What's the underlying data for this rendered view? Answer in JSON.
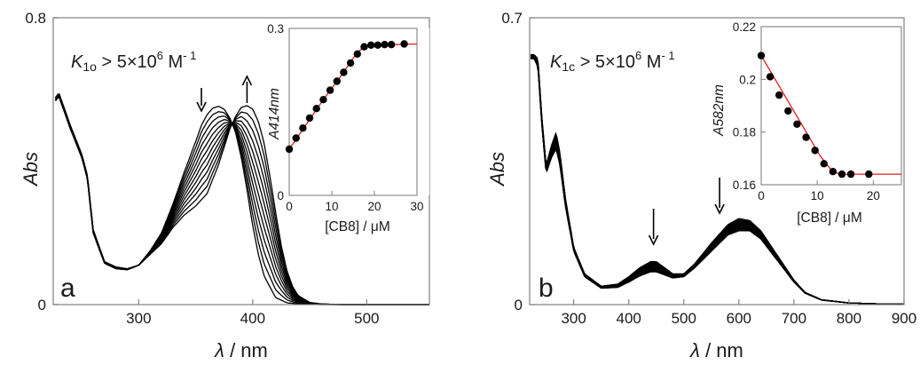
{
  "figure": {
    "panels": [
      {
        "letter": "a",
        "k_symbol": "K",
        "k_sub": "1o",
        "k_rest": " > 5×10",
        "k_exp": "6",
        "k_unit": " M",
        "k_unit_exp": "- 1",
        "ylabel": "Abs",
        "xlabel_sym": "λ",
        "xlabel_unit": " / nm"
      },
      {
        "letter": "b",
        "k_symbol": "K",
        "k_sub": "1c",
        "k_rest": " > 5×10",
        "k_exp": "6",
        "k_unit": " M",
        "k_unit_exp": "- 1",
        "ylabel": "Abs",
        "xlabel_sym": "λ",
        "xlabel_unit": " / nm"
      }
    ],
    "colors": {
      "curves": "#000000",
      "fit": "#e31a1c",
      "axes": "#808080"
    }
  },
  "chart_data": [
    {
      "type": "line",
      "panel": "a",
      "description_series": "UV-vis titration spectra",
      "xlabel": "λ / nm",
      "ylabel": "Abs",
      "xlim": [
        225,
        555
      ],
      "ylim": [
        0,
        0.8
      ],
      "xticks": [
        300,
        400,
        500
      ],
      "yticks": [
        0,
        0.8
      ],
      "n_curves": 12,
      "first_curve": {
        "x": [
          225,
          230,
          240,
          250,
          255,
          260,
          270,
          280,
          290,
          300,
          310,
          320,
          330,
          340,
          350,
          355,
          360,
          365,
          370,
          375,
          380,
          385,
          390,
          395,
          400,
          405,
          410,
          420,
          430,
          440,
          450,
          460,
          480,
          500,
          520,
          555
        ],
        "y": [
          0.56,
          0.58,
          0.49,
          0.41,
          0.35,
          0.2,
          0.115,
          0.1,
          0.097,
          0.11,
          0.15,
          0.2,
          0.28,
          0.37,
          0.455,
          0.5,
          0.53,
          0.548,
          0.553,
          0.545,
          0.52,
          0.48,
          0.41,
          0.32,
          0.22,
          0.14,
          0.08,
          0.02,
          0.005,
          0.002,
          0.001,
          0,
          0,
          0,
          0,
          0
        ]
      },
      "last_curve": {
        "x": [
          225,
          230,
          240,
          250,
          255,
          260,
          270,
          280,
          290,
          300,
          310,
          320,
          330,
          340,
          350,
          360,
          370,
          375,
          380,
          385,
          390,
          395,
          400,
          405,
          410,
          415,
          420,
          425,
          430,
          435,
          440,
          450,
          460,
          480,
          500,
          520,
          555
        ],
        "y": [
          0.57,
          0.59,
          0.5,
          0.42,
          0.36,
          0.21,
          0.12,
          0.105,
          0.1,
          0.11,
          0.14,
          0.17,
          0.215,
          0.25,
          0.275,
          0.31,
          0.39,
          0.44,
          0.49,
          0.525,
          0.55,
          0.555,
          0.545,
          0.51,
          0.45,
          0.36,
          0.26,
          0.165,
          0.095,
          0.05,
          0.025,
          0.006,
          0.002,
          0,
          0,
          0,
          0
        ]
      },
      "annotations": [
        "arrow down at 355 nm",
        "arrow up at 395 nm"
      ],
      "inset": {
        "type": "scatter",
        "xlabel": "[CB8] / μM",
        "ylabel": "A414nm",
        "xlim": [
          0,
          30
        ],
        "ylim": [
          0,
          0.3
        ],
        "xticks": [
          0,
          10,
          20,
          30
        ],
        "yticks": [
          0,
          0.3
        ],
        "points": {
          "x": [
            0,
            1.6,
            3.2,
            4.8,
            6.4,
            8.0,
            9.6,
            11.2,
            12.8,
            14.4,
            16.0,
            17.6,
            19.2,
            20.8,
            22.4,
            24.0,
            27.0
          ],
          "y": [
            0.083,
            0.103,
            0.121,
            0.139,
            0.156,
            0.172,
            0.189,
            0.205,
            0.221,
            0.238,
            0.254,
            0.267,
            0.27,
            0.27,
            0.271,
            0.271,
            0.272
          ]
        },
        "fit": {
          "x": [
            0,
            8,
            12,
            15,
            16.5,
            18,
            20,
            30
          ],
          "y": [
            0.083,
            0.172,
            0.213,
            0.246,
            0.26,
            0.268,
            0.27,
            0.272
          ]
        }
      }
    },
    {
      "type": "line",
      "panel": "b",
      "description_series": "UV-vis titration spectra",
      "xlabel": "λ / nm",
      "ylabel": "Abs",
      "xlim": [
        220,
        900
      ],
      "ylim": [
        0,
        0.7
      ],
      "xticks": [
        300,
        400,
        500,
        600,
        700,
        800,
        900
      ],
      "yticks": [
        0,
        0.7
      ],
      "n_curves": 12,
      "first_curve": {
        "x": [
          228,
          235,
          242,
          250,
          260,
          268,
          275,
          285,
          300,
          320,
          350,
          380,
          400,
          420,
          440,
          450,
          460,
          480,
          500,
          520,
          550,
          580,
          600,
          620,
          640,
          660,
          680,
          700,
          720,
          750,
          800,
          850,
          900
        ],
        "y": [
          0.61,
          0.6,
          0.46,
          0.34,
          0.39,
          0.42,
          0.37,
          0.26,
          0.14,
          0.075,
          0.045,
          0.05,
          0.068,
          0.09,
          0.105,
          0.105,
          0.095,
          0.075,
          0.075,
          0.1,
          0.15,
          0.195,
          0.21,
          0.205,
          0.18,
          0.14,
          0.1,
          0.06,
          0.03,
          0.012,
          0.004,
          0.002,
          0.001
        ]
      },
      "last_curve": {
        "x": [
          228,
          235,
          242,
          250,
          260,
          268,
          275,
          285,
          300,
          320,
          350,
          380,
          400,
          420,
          440,
          450,
          460,
          480,
          500,
          520,
          550,
          580,
          600,
          620,
          640,
          660,
          680,
          700,
          720,
          750,
          800,
          850,
          900
        ],
        "y": [
          0.6,
          0.58,
          0.44,
          0.32,
          0.36,
          0.38,
          0.34,
          0.24,
          0.13,
          0.068,
          0.04,
          0.042,
          0.055,
          0.07,
          0.08,
          0.08,
          0.075,
          0.065,
          0.068,
          0.09,
          0.13,
          0.17,
          0.18,
          0.18,
          0.16,
          0.125,
          0.09,
          0.055,
          0.028,
          0.011,
          0.004,
          0.002,
          0.001
        ]
      },
      "annotations": [
        "arrow down at 445 nm",
        "arrow down at 565 nm"
      ],
      "inset": {
        "type": "scatter",
        "xlabel": "[CB8] / μM",
        "ylabel": "A582nm",
        "xlim": [
          0,
          25
        ],
        "ylim": [
          0.16,
          0.22
        ],
        "xticks": [
          0,
          10,
          20
        ],
        "yticks": [
          0.16,
          0.18,
          0.2,
          0.22
        ],
        "points": {
          "x": [
            0,
            1.6,
            3.2,
            4.8,
            6.4,
            8.0,
            9.6,
            11.2,
            12.8,
            14.4,
            16.0,
            19.2
          ],
          "y": [
            0.209,
            0.201,
            0.194,
            0.188,
            0.183,
            0.178,
            0.173,
            0.168,
            0.165,
            0.164,
            0.164,
            0.164
          ]
        },
        "fit": {
          "x": [
            0,
            10.5,
            12.5,
            14,
            25
          ],
          "y": [
            0.209,
            0.171,
            0.1655,
            0.164,
            0.164
          ]
        }
      }
    }
  ]
}
